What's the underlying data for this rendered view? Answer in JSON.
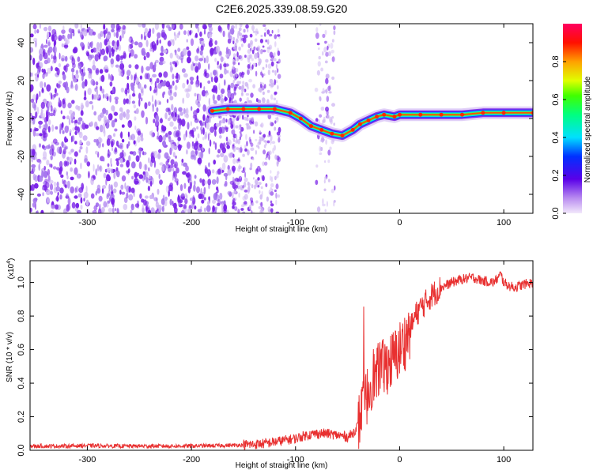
{
  "title": "C2E6.2025.339.08.59.G20",
  "colors": {
    "snr_line": "#e83030",
    "spectrogram_noise": "#7a22e8",
    "spectrogram_light": "#cdb4f2"
  },
  "chart_data": [
    {
      "type": "heatmap",
      "name": "spectrogram",
      "title": "C2E6.2025.339.08.59.G20",
      "xlabel": "Height of straight line (km)",
      "ylabel": "Frequency (Hz)",
      "xlim": [
        -355,
        128
      ],
      "ylim": [
        -50,
        50
      ],
      "xticks": [
        -300,
        -200,
        -100,
        0,
        100
      ],
      "xtick_labels": [
        "-300",
        "-200",
        "-100",
        "0",
        "100"
      ],
      "yticks": [
        -40,
        -20,
        0,
        20,
        40
      ],
      "ytick_labels": [
        "-40",
        "-20",
        "0",
        "20",
        "40"
      ],
      "ridge": {
        "x": [
          -180,
          -165,
          -150,
          -135,
          -120,
          -105,
          -95,
          -85,
          -75,
          -65,
          -55,
          -45,
          -38,
          -30,
          -22,
          -15,
          -5,
          0,
          20,
          40,
          60,
          80,
          100,
          128
        ],
        "y": [
          4,
          5,
          5,
          5,
          5,
          3,
          0,
          -4,
          -6,
          -8,
          -9,
          -6,
          -3,
          -1,
          1,
          2,
          1,
          2,
          2,
          2,
          2,
          3,
          3,
          3
        ]
      },
      "colorbar": {
        "label": "Normalized spectral amplitude",
        "range": [
          0,
          1
        ],
        "ticks": [
          0.0,
          0.2,
          0.4,
          0.6,
          0.8
        ],
        "tick_labels": [
          "0.0",
          "0.2",
          "0.4",
          "0.6",
          "0.8"
        ]
      }
    },
    {
      "type": "line",
      "name": "snr",
      "xlabel": "Height of straight line (km)",
      "ylabel": "SNR (10 * v/v)",
      "scale_label": "(x10",
      "scale_exponent": "4",
      "scale_suffix": ")",
      "xlim": [
        -355,
        128
      ],
      "ylim": [
        0,
        1.13
      ],
      "xticks": [
        -300,
        -200,
        -100,
        0,
        100
      ],
      "xtick_labels": [
        "-300",
        "-200",
        "-100",
        "0",
        "100"
      ],
      "yticks": [
        0.0,
        0.2,
        0.4,
        0.6,
        0.8,
        1.0
      ],
      "ytick_labels": [
        "0.0",
        "0.2",
        "0.4",
        "0.6",
        "0.8",
        "1.0"
      ],
      "series": [
        {
          "name": "SNR",
          "x": [
            -355,
            -340,
            -320,
            -300,
            -280,
            -260,
            -240,
            -220,
            -200,
            -180,
            -160,
            -140,
            -130,
            -120,
            -110,
            -100,
            -90,
            -80,
            -70,
            -60,
            -50,
            -45,
            -40,
            -35,
            -30,
            -27,
            -25,
            -22,
            -20,
            -17,
            -14,
            -10,
            -5,
            0,
            5,
            10,
            15,
            20,
            25,
            30,
            40,
            50,
            60,
            70,
            80,
            90,
            95,
            97,
            100,
            105,
            110,
            115,
            120,
            128
          ],
          "y": [
            0.025,
            0.025,
            0.025,
            0.028,
            0.026,
            0.025,
            0.025,
            0.025,
            0.026,
            0.027,
            0.03,
            0.035,
            0.04,
            0.05,
            0.06,
            0.07,
            0.09,
            0.1,
            0.1,
            0.09,
            0.08,
            0.1,
            0.15,
            0.25,
            0.35,
            0.42,
            0.45,
            0.42,
            0.5,
            0.48,
            0.5,
            0.52,
            0.55,
            0.6,
            0.65,
            0.72,
            0.8,
            0.85,
            0.88,
            0.92,
            0.97,
            1.0,
            1.02,
            1.03,
            1.01,
            1.0,
            1.03,
            1.05,
            1.0,
            0.98,
            0.97,
            0.98,
            0.99,
            1.0
          ]
        }
      ]
    }
  ]
}
